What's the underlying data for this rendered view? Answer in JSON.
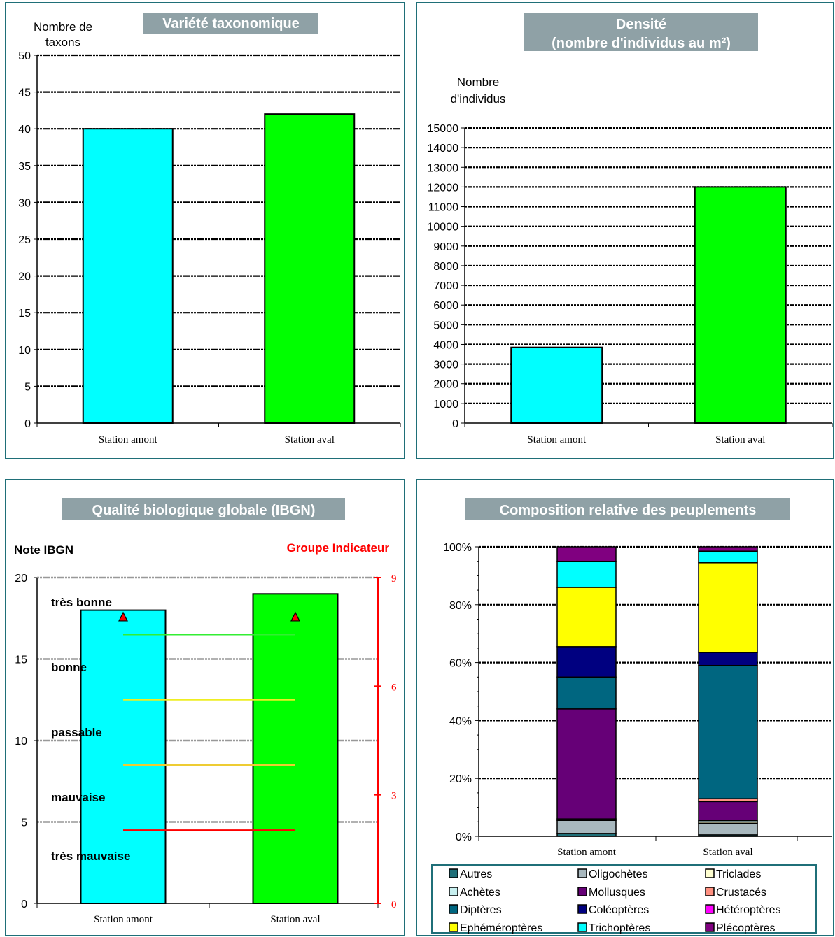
{
  "colors": {
    "panel_border": "#1F6F78",
    "title_bg": "#8FA1A6",
    "cyan": "#00FFFF",
    "green": "#00FF00",
    "red": "#FF0000"
  },
  "chart_data": [
    {
      "type": "bar",
      "title": "Variété taxonomique",
      "ylabel": "Nombre de taxons",
      "categories": [
        "Station amont",
        "Station aval"
      ],
      "values": [
        40,
        42
      ],
      "ylim": [
        0,
        50
      ],
      "yticks": [
        "0",
        "5",
        "10",
        "15",
        "20",
        "25",
        "30",
        "35",
        "40",
        "45",
        "50"
      ],
      "bar_colors": [
        "#00FFFF",
        "#00FF00"
      ],
      "grid": true
    },
    {
      "type": "bar",
      "title": "Densité",
      "title_line2": "(nombre d'individus au m²)",
      "ylabel": "Nombre d'individus",
      "categories": [
        "Station amont",
        "Station aval"
      ],
      "values": [
        3850,
        12000
      ],
      "ylim": [
        0,
        15000
      ],
      "yticks": [
        "0",
        "1000",
        "2000",
        "3000",
        "4000",
        "5000",
        "6000",
        "7000",
        "8000",
        "9000",
        "10000",
        "11000",
        "12000",
        "13000",
        "14000",
        "15000"
      ],
      "bar_colors": [
        "#00FFFF",
        "#00FF00"
      ],
      "grid": true
    },
    {
      "type": "bar",
      "title": "Qualité biologique globale (IBGN)",
      "ylabel": "Note IBGN",
      "y2label": "Groupe Indicateur",
      "categories": [
        "Station amont",
        "Station aval"
      ],
      "values": [
        18,
        19
      ],
      "ylim": [
        0,
        20
      ],
      "yticks": [
        "0",
        "5",
        "10",
        "15",
        "20"
      ],
      "y2lim": [
        0,
        9
      ],
      "y2ticks": [
        "0",
        "3",
        "6",
        "9"
      ],
      "group_indicator": [
        7.9,
        7.9
      ],
      "bar_colors": [
        "#00FFFF",
        "#00FF00"
      ],
      "quality_classes": [
        "très bonne",
        "bonne",
        "passable",
        "mauvaise",
        "très mauvaise"
      ],
      "class_thresholds": [
        {
          "value": 16.5,
          "color": "#33EE33"
        },
        {
          "value": 12.5,
          "color": "#EEEE22"
        },
        {
          "value": 8.5,
          "color": "#EECC33"
        },
        {
          "value": 4.5,
          "color": "#FF0000"
        }
      ]
    },
    {
      "type": "bar",
      "stacked": true,
      "title": "Composition relative des peuplements",
      "categories": [
        "Station amont",
        "Station aval"
      ],
      "ylim": [
        0,
        100
      ],
      "yticks": [
        "0%",
        "20%",
        "40%",
        "60%",
        "80%",
        "100%"
      ],
      "series": [
        {
          "name": "Autres",
          "color": "#1F6F78",
          "values": [
            1,
            0.5
          ]
        },
        {
          "name": "Oligochètes",
          "color": "#A8B8BE",
          "values": [
            4.5,
            4
          ]
        },
        {
          "name": "Triclades",
          "color": "#FFFFD0",
          "values": [
            0.5,
            0.5
          ]
        },
        {
          "name": "Achètes",
          "color": "#C8F0F0",
          "values": [
            0,
            0.5
          ]
        },
        {
          "name": "Mollusques",
          "color": "#660077",
          "values": [
            38,
            6.5
          ]
        },
        {
          "name": "Crustacés",
          "color": "#FF9080",
          "values": [
            0,
            1
          ]
        },
        {
          "name": "Diptères",
          "color": "#006680",
          "values": [
            11,
            46
          ]
        },
        {
          "name": "Coléoptères",
          "color": "#000080",
          "values": [
            10.5,
            4.5
          ]
        },
        {
          "name": "Hétéroptères",
          "color": "#FF00FF",
          "values": [
            0,
            0
          ]
        },
        {
          "name": "Ephéméroptères",
          "color": "#FFFF00",
          "values": [
            20.5,
            31
          ]
        },
        {
          "name": "Trichoptères",
          "color": "#00FFFF",
          "values": [
            9,
            4
          ]
        },
        {
          "name": "Plécoptères",
          "color": "#800080",
          "values": [
            5,
            1.5
          ]
        }
      ],
      "grid": true,
      "legend_position": "bottom"
    }
  ]
}
